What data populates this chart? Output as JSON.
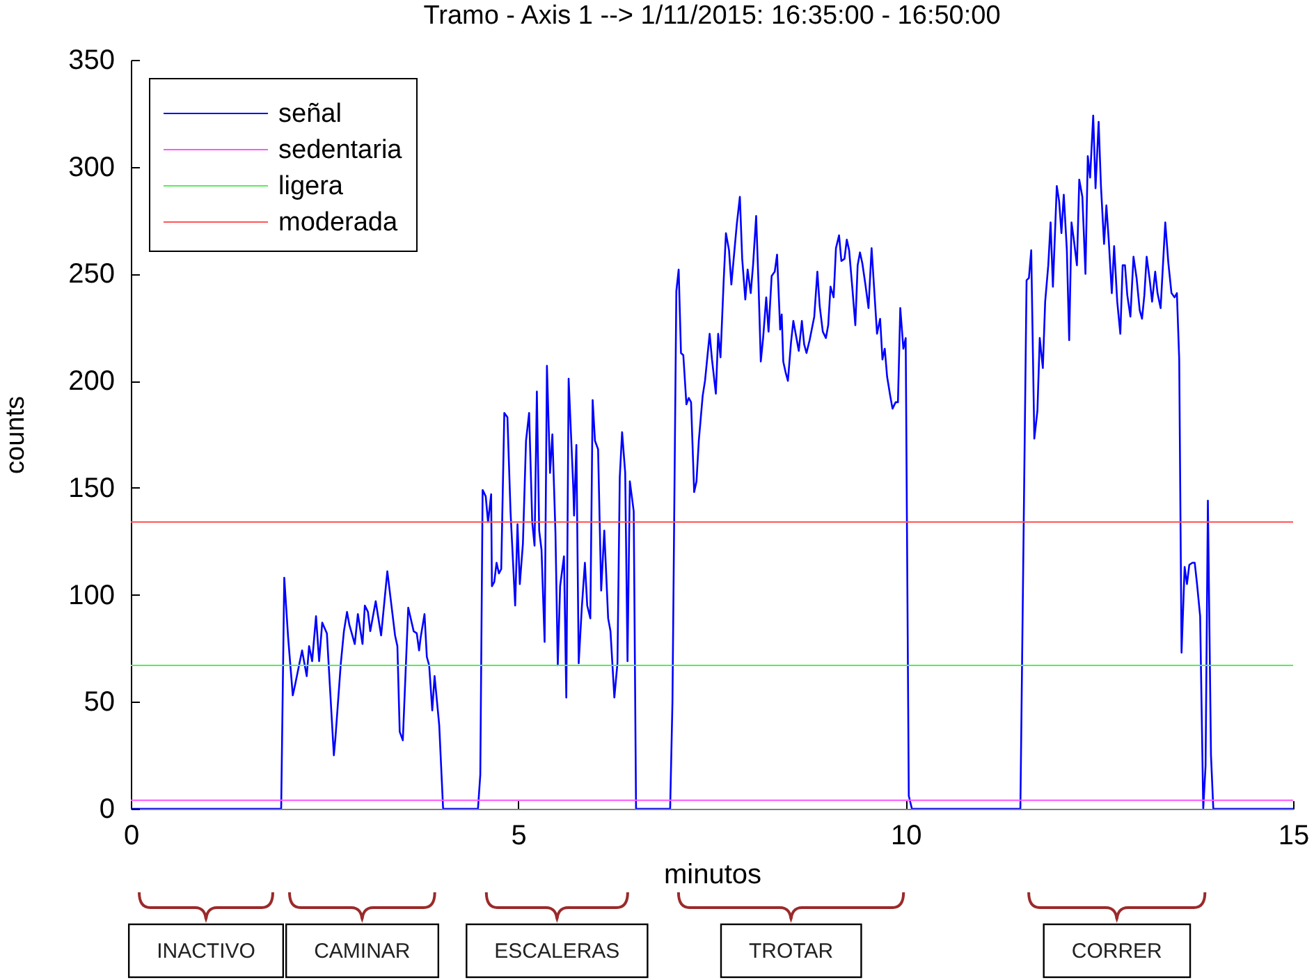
{
  "chart_data": {
    "type": "line",
    "title": "Tramo - Axis 1 --> 1/11/2015: 16:35:00 - 16:50:00",
    "xlabel": "minutos",
    "ylabel": "counts",
    "xlim": [
      0,
      15
    ],
    "xticks": [
      0,
      5,
      10,
      15
    ],
    "ylim": [
      0,
      350
    ],
    "yticks": [
      0,
      50,
      100,
      150,
      200,
      250,
      300,
      350
    ],
    "legend": "top left",
    "annotations": [
      "INACTIVO",
      "CAMINAR",
      "ESCALERAS",
      "TROTAR",
      "CORRER"
    ],
    "series": [
      {
        "name": "señal",
        "color": "#0000ff",
        "x": [
          0,
          1.94,
          1.98,
          2.03,
          2.09,
          2.12,
          2.21,
          2.27,
          2.3,
          2.34,
          2.39,
          2.43,
          2.47,
          2.53,
          2.62,
          2.64,
          2.71,
          2.75,
          2.79,
          2.82,
          2.89,
          2.93,
          2.99,
          3.02,
          3.06,
          3.09,
          3.16,
          3.23,
          3.31,
          3.36,
          3.41,
          3.44,
          3.47,
          3.51,
          3.58,
          3.65,
          3.69,
          3.72,
          3.74,
          3.79,
          3.82,
          3.85,
          3.89,
          3.92,
          3.98,
          4.03,
          4.48,
          4.51,
          4.54,
          4.58,
          4.61,
          4.65,
          4.66,
          4.69,
          4.72,
          4.75,
          4.78,
          4.82,
          4.86,
          4.9,
          4.96,
          4.99,
          5.02,
          5.06,
          5.1,
          5.14,
          5.18,
          5.21,
          5.24,
          5.27,
          5.3,
          5.34,
          5.37,
          5.41,
          5.44,
          5.48,
          5.51,
          5.54,
          5.59,
          5.62,
          5.65,
          5.71,
          5.72,
          5.75,
          5.78,
          5.82,
          5.86,
          5.89,
          5.93,
          5.96,
          5.99,
          6.03,
          6.07,
          6.11,
          6.16,
          6.19,
          6.24,
          6.28,
          6.31,
          6.34,
          6.38,
          6.41,
          6.44,
          6.49,
          6.52,
          6.96,
          6.99,
          7.04,
          7.07,
          7.1,
          7.13,
          7.17,
          7.2,
          7.23,
          7.27,
          7.3,
          7.33,
          7.38,
          7.41,
          7.44,
          7.47,
          7.5,
          7.55,
          7.58,
          7.61,
          7.65,
          7.68,
          7.72,
          7.75,
          7.78,
          7.82,
          7.86,
          7.89,
          7.93,
          7.96,
          8,
          8.03,
          8.07,
          8.1,
          8.13,
          8.16,
          8.2,
          8.23,
          8.27,
          8.31,
          8.34,
          8.38,
          8.4,
          8.42,
          8.45,
          8.48,
          8.52,
          8.55,
          8.58,
          8.62,
          8.66,
          8.69,
          8.72,
          8.76,
          8.82,
          8.86,
          8.89,
          8.93,
          8.97,
          9,
          9.03,
          9.07,
          9.1,
          9.14,
          9.17,
          9.21,
          9.24,
          9.27,
          9.31,
          9.35,
          9.38,
          9.41,
          9.44,
          9.48,
          9.52,
          9.56,
          9.6,
          9.63,
          9.67,
          9.7,
          9.73,
          9.76,
          9.8,
          9.83,
          9.87,
          9.9,
          9.93,
          9.97,
          10,
          10.04,
          10.08,
          11.48,
          11.56,
          11.59,
          11.62,
          11.66,
          11.7,
          11.73,
          11.77,
          11.8,
          11.84,
          11.87,
          11.9,
          11.95,
          11.98,
          12.01,
          12.04,
          12.08,
          12.11,
          12.14,
          12.17,
          12.21,
          12.24,
          12.28,
          12.32,
          12.35,
          12.38,
          12.42,
          12.45,
          12.49,
          12.52,
          12.56,
          12.59,
          12.62,
          12.66,
          12.69,
          12.73,
          12.77,
          12.8,
          12.83,
          12.86,
          12.9,
          12.94,
          12.98,
          13.02,
          13.05,
          13.08,
          13.11,
          13.15,
          13.18,
          13.22,
          13.25,
          13.29,
          13.35,
          13.39,
          13.43,
          13.47,
          13.5,
          13.53,
          13.56,
          13.6,
          13.63,
          13.66,
          13.7,
          13.73,
          13.76,
          13.8,
          13.84,
          13.87,
          13.9,
          13.94,
          13.97,
          15
        ],
        "values": [
          0,
          0,
          108,
          80,
          53,
          58,
          74,
          62,
          76,
          69,
          90,
          69,
          87,
          82,
          25,
          33,
          68,
          83,
          92,
          86,
          77,
          91,
          77,
          95,
          92,
          83,
          97,
          81,
          111,
          96,
          81,
          76,
          36,
          32,
          94,
          83,
          82,
          74,
          80,
          91,
          71,
          67,
          46,
          62,
          39,
          0,
          0,
          16,
          149,
          146,
          134,
          147,
          104,
          106,
          115,
          110,
          112,
          185,
          183,
          139,
          95,
          133,
          105,
          124,
          172,
          185,
          134,
          123,
          195,
          130,
          121,
          78,
          207,
          157,
          175,
          129,
          67,
          104,
          118,
          52,
          201,
          150,
          137,
          170,
          68,
          94,
          115,
          95,
          89,
          191,
          172,
          168,
          102,
          130,
          89,
          83,
          52,
          68,
          155,
          176,
          157,
          69,
          153,
          139,
          0,
          0,
          50,
          242,
          252,
          213,
          212,
          189,
          192,
          190,
          148,
          153,
          172,
          193,
          200,
          211,
          222,
          210,
          194,
          222,
          211,
          246,
          269,
          261,
          245,
          257,
          273,
          286,
          257,
          238,
          252,
          241,
          254,
          277,
          246,
          209,
          220,
          239,
          223,
          249,
          251,
          259,
          224,
          231,
          209,
          204,
          200,
          218,
          228,
          222,
          214,
          228,
          217,
          213,
          219,
          230,
          251,
          235,
          223,
          220,
          226,
          244,
          239,
          262,
          268,
          256,
          257,
          266,
          261,
          244,
          226,
          254,
          260,
          255,
          245,
          234,
          262,
          239,
          222,
          229,
          210,
          215,
          202,
          193,
          187,
          190,
          190,
          234,
          215,
          220,
          6,
          0,
          0,
          247,
          248,
          261,
          173,
          186,
          220,
          206,
          237,
          254,
          274,
          244,
          291,
          284,
          269,
          287,
          261,
          219,
          274,
          266,
          254,
          294,
          286,
          250,
          305,
          295,
          324,
          290,
          321,
          291,
          264,
          282,
          266,
          241,
          263,
          237,
          222,
          254,
          254,
          240,
          230,
          258,
          248,
          233,
          229,
          240,
          258,
          247,
          237,
          251,
          241,
          234,
          274,
          255,
          241,
          239,
          241,
          210,
          73,
          113,
          105,
          114,
          115,
          115,
          105,
          90,
          0,
          20,
          144,
          25,
          0,
          0
        ]
      },
      {
        "name": "sedentaria",
        "color": "#ff55ff",
        "x": [
          0,
          15
        ],
        "values": [
          4,
          4
        ]
      },
      {
        "name": "ligera",
        "color": "#55ee55",
        "x": [
          0,
          15
        ],
        "values": [
          67,
          67
        ]
      },
      {
        "name": "moderada",
        "color": "#ff5555",
        "x": [
          0,
          15
        ],
        "values": [
          134,
          134
        ]
      }
    ]
  }
}
